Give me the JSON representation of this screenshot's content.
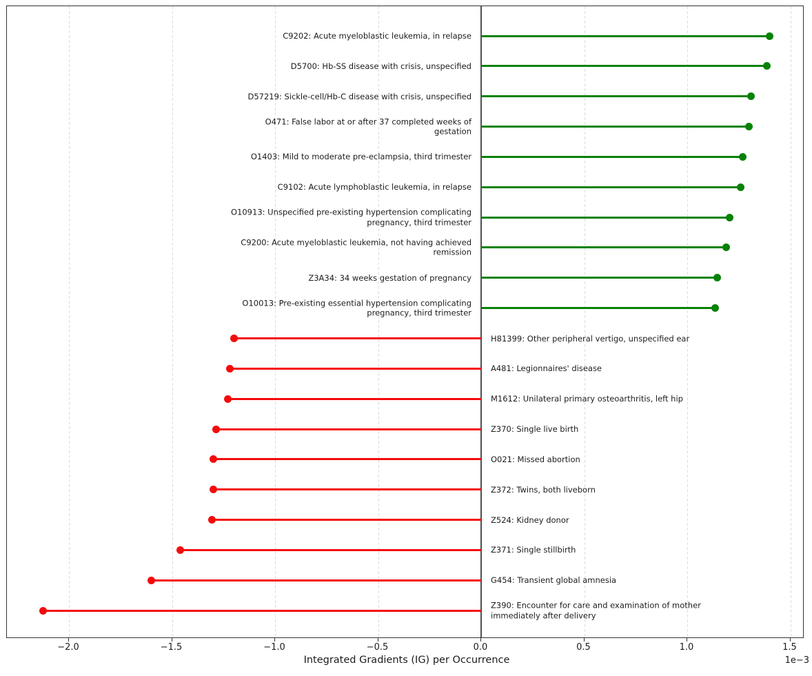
{
  "chart_data": {
    "type": "lollipop",
    "xlabel": "Integrated Gradients (IG) per Occurrence",
    "offset_label": "1e−3",
    "unit_multiplier": 0.001,
    "value_units": "1e-3",
    "xlim_1e3": [
      -2.3,
      1.57
    ],
    "x_ticks_1e3": [
      -2.0,
      -1.5,
      -1.0,
      -0.5,
      0.0,
      0.5,
      1.0,
      1.5
    ],
    "x_tick_labels": [
      "−2.0",
      "−1.5",
      "−1.0",
      "−0.5",
      "0.0",
      "0.5",
      "1.0",
      "1.5"
    ],
    "grid": true,
    "positive_color": "#068206",
    "negative_color": "#f50a0a",
    "rows": [
      {
        "code": "C9202",
        "value_1e3": 1.4,
        "lines": [
          "C9202: Acute myeloblastic leukemia, in relapse"
        ]
      },
      {
        "code": "D5700",
        "value_1e3": 1.385,
        "lines": [
          "D5700: Hb-SS disease with crisis, unspecified"
        ]
      },
      {
        "code": "D57219",
        "value_1e3": 1.31,
        "lines": [
          "D57219: Sickle-cell/Hb-C disease with crisis, unspecified"
        ]
      },
      {
        "code": "O471",
        "value_1e3": 1.3,
        "lines": [
          "O471: False labor at or after 37 completed weeks of",
          "gestation"
        ]
      },
      {
        "code": "O1403",
        "value_1e3": 1.27,
        "lines": [
          "O1403: Mild to moderate pre-eclampsia, third trimester"
        ]
      },
      {
        "code": "C9102",
        "value_1e3": 1.26,
        "lines": [
          "C9102: Acute lymphoblastic leukemia, in relapse"
        ]
      },
      {
        "code": "O10913",
        "value_1e3": 1.205,
        "lines": [
          "O10913: Unspecified pre-existing hypertension complicating",
          "pregnancy, third trimester"
        ]
      },
      {
        "code": "C9200",
        "value_1e3": 1.19,
        "lines": [
          "C9200: Acute myeloblastic leukemia, not having achieved",
          "remission"
        ]
      },
      {
        "code": "Z3A34",
        "value_1e3": 1.145,
        "lines": [
          "Z3A34: 34 weeks gestation of pregnancy"
        ]
      },
      {
        "code": "O10013",
        "value_1e3": 1.135,
        "lines": [
          "O10013: Pre-existing essential hypertension complicating",
          "pregnancy, third trimester"
        ]
      },
      {
        "code": "H81399",
        "value_1e3": -1.2,
        "lines": [
          "H81399: Other peripheral vertigo, unspecified ear"
        ]
      },
      {
        "code": "A481",
        "value_1e3": -1.22,
        "lines": [
          "A481: Legionnaires' disease"
        ]
      },
      {
        "code": "M1612",
        "value_1e3": -1.23,
        "lines": [
          "M1612: Unilateral primary osteoarthritis, left hip"
        ]
      },
      {
        "code": "Z370",
        "value_1e3": -1.285,
        "lines": [
          "Z370: Single live birth"
        ]
      },
      {
        "code": "O021",
        "value_1e3": -1.3,
        "lines": [
          "O021: Missed abortion"
        ]
      },
      {
        "code": "Z372",
        "value_1e3": -1.3,
        "lines": [
          "Z372: Twins, both liveborn"
        ]
      },
      {
        "code": "Z524",
        "value_1e3": -1.305,
        "lines": [
          "Z524: Kidney donor"
        ]
      },
      {
        "code": "Z371",
        "value_1e3": -1.46,
        "lines": [
          "Z371: Single stillbirth"
        ]
      },
      {
        "code": "G454",
        "value_1e3": -1.6,
        "lines": [
          "G454: Transient global amnesia"
        ]
      },
      {
        "code": "Z390",
        "value_1e3": -2.125,
        "lines": [
          "Z390: Encounter for care and examination of mother",
          "immediately after delivery"
        ]
      }
    ]
  }
}
